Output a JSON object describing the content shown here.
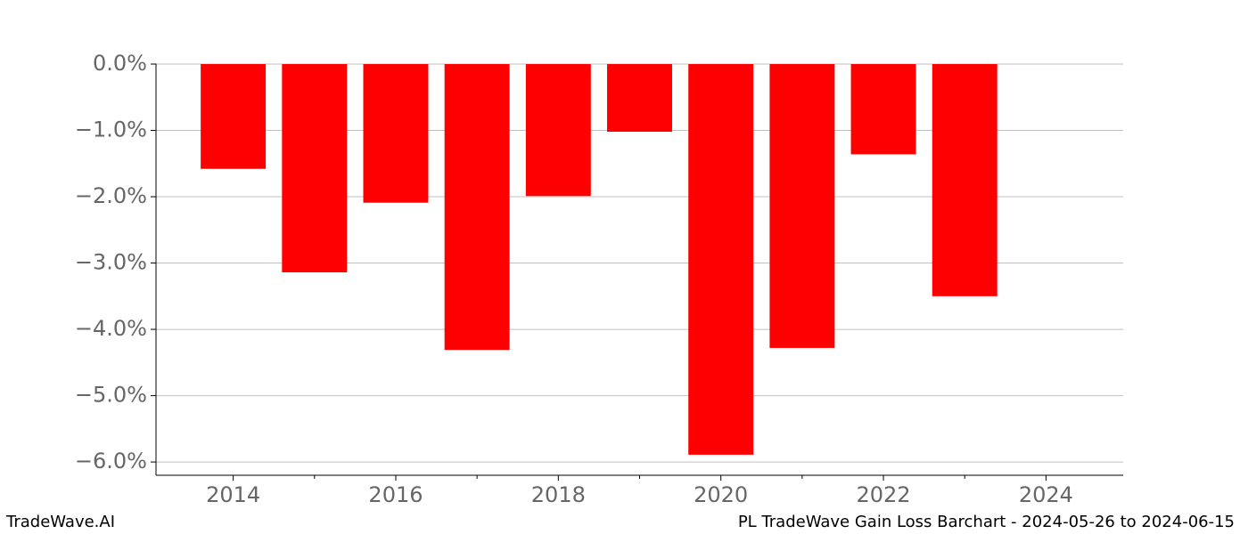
{
  "chart_data": {
    "type": "bar",
    "x": [
      2014,
      2015,
      2016,
      2017,
      2018,
      2019,
      2020,
      2021,
      2022,
      2023
    ],
    "values": [
      -1.58,
      -3.14,
      -2.09,
      -4.31,
      -1.99,
      -1.02,
      -5.89,
      -4.28,
      -1.36,
      -3.5
    ],
    "color": "#ff0000",
    "xlim": [
      2013.05,
      2024.95
    ],
    "xticks": [
      2014,
      2016,
      2018,
      2020,
      2022,
      2024
    ],
    "xminorticks": [
      2015,
      2017,
      2019,
      2021,
      2023
    ],
    "ylim": [
      -6.2,
      0
    ],
    "yticks": [
      {
        "value": 0,
        "label": "0.0%"
      },
      {
        "value": -1,
        "label": "−1.0%"
      },
      {
        "value": -2,
        "label": "−2.0%"
      },
      {
        "value": -3,
        "label": "−3.0%"
      },
      {
        "value": -4,
        "label": "−4.0%"
      },
      {
        "value": -5,
        "label": "−5.0%"
      },
      {
        "value": -6,
        "label": "−6.0%"
      }
    ],
    "grid": true,
    "footer_left": "TradeWave.AI",
    "footer_right": "PL TradeWave Gain Loss Barchart - 2024-05-26 to 2024-06-15"
  }
}
